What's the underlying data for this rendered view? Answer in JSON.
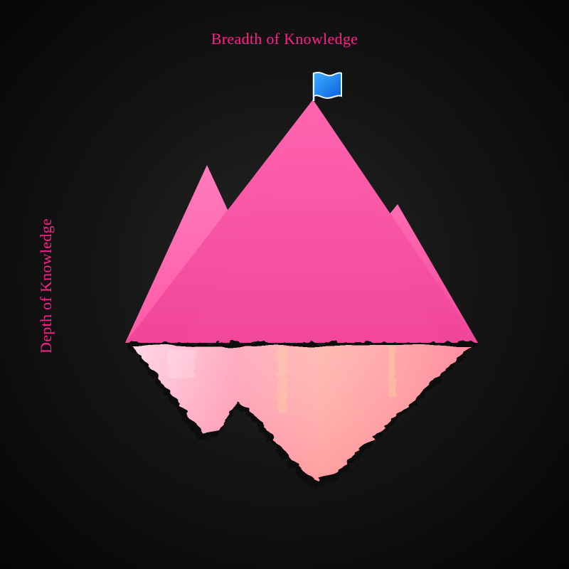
{
  "labels": {
    "top": "Breadth of Knowledge",
    "left": "Depth of Knowledge"
  },
  "colors": {
    "text": "#ff1f8e",
    "mountain_light": "#ff6eb2",
    "mountain_dark": "#f0459a",
    "reflection_light": "#ffc2cf",
    "reflection_warm": "#ff8f9c",
    "flag": "#1e90ff"
  },
  "icons": {
    "flag": "flag-icon"
  }
}
